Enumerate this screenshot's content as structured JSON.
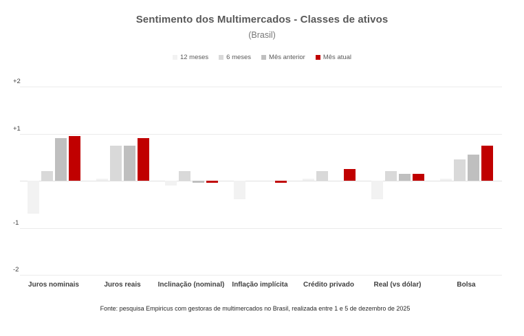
{
  "chart_data": {
    "type": "bar",
    "title": "Sentimento dos Multimercados - Classes de ativos",
    "subtitle": "(Brasil)",
    "categories": [
      "Juros nominais",
      "Juros reais",
      "Inclinação (nominal)",
      "Inflação implícita",
      "Crédito privado",
      "Real (vs dólar)",
      "Bolsa"
    ],
    "series": [
      {
        "name": "12 meses",
        "color": "#f2f2f2",
        "values": [
          -0.7,
          0.05,
          -0.1,
          -0.4,
          0.05,
          -0.4,
          0.05
        ]
      },
      {
        "name": "6 meses",
        "color": "#d9d9d9",
        "values": [
          0.2,
          0.75,
          0.2,
          0,
          0.2,
          0.2,
          0.45
        ]
      },
      {
        "name": "Mês anterior",
        "color": "#bfbfbf",
        "values": [
          0.9,
          0.75,
          -0.05,
          0,
          0,
          0.15,
          0.55
        ]
      },
      {
        "name": "Mês atual",
        "color": "#c00000",
        "values": [
          0.95,
          0.9,
          -0.05,
          -0.05,
          0.25,
          0.15,
          0.75
        ]
      }
    ],
    "ylim": [
      -2,
      2
    ],
    "yticks": [
      {
        "label": "+2",
        "value": 2
      },
      {
        "label": "+1",
        "value": 1
      },
      {
        "label": "-1",
        "value": -1
      },
      {
        "label": "-2",
        "value": -2
      }
    ],
    "gridline_values": [
      2,
      1,
      0,
      -1,
      -2
    ],
    "grid": true,
    "legend_position": "top",
    "footer": "Fonte: pesquisa Empiricus com gestoras de multimercados no Brasil, realizada entre 1 e 5 de dezembro de 2025",
    "colors": {
      "accent_red": "#c00000",
      "title_gray": "#595959",
      "gridline_gray": "#ebebeb"
    }
  }
}
